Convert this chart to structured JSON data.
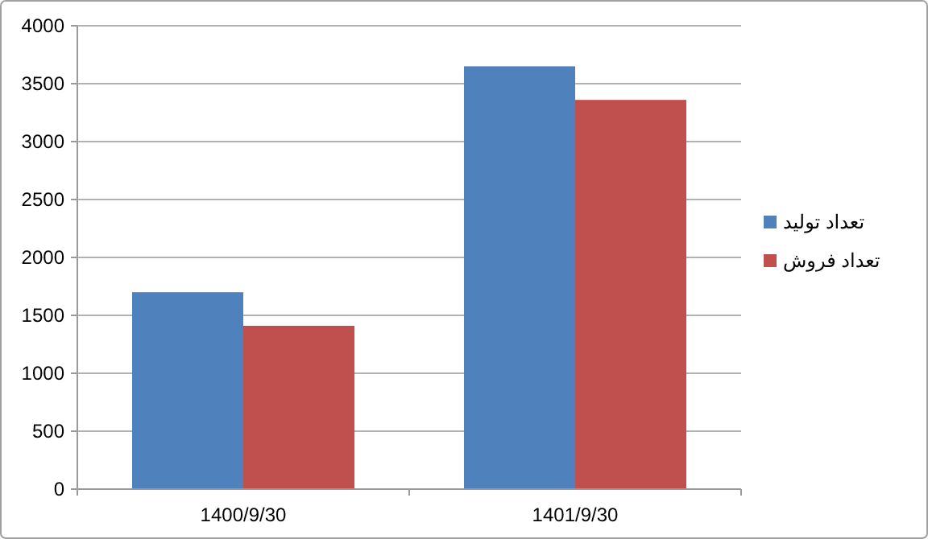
{
  "chart_data": {
    "type": "bar",
    "categories": [
      "1400/9/30",
      "1401/9/30"
    ],
    "series": [
      {
        "name": "تعداد تولید",
        "color": "#4f81bd",
        "values": [
          1700,
          3650
        ]
      },
      {
        "name": "تعداد فروش",
        "color": "#c0504d",
        "values": [
          1410,
          3360
        ]
      }
    ],
    "ylim": [
      0,
      4000
    ],
    "yticks": [
      0,
      500,
      1000,
      1500,
      2000,
      2500,
      3000,
      3500,
      4000
    ],
    "grid": "y",
    "legend": "right"
  }
}
